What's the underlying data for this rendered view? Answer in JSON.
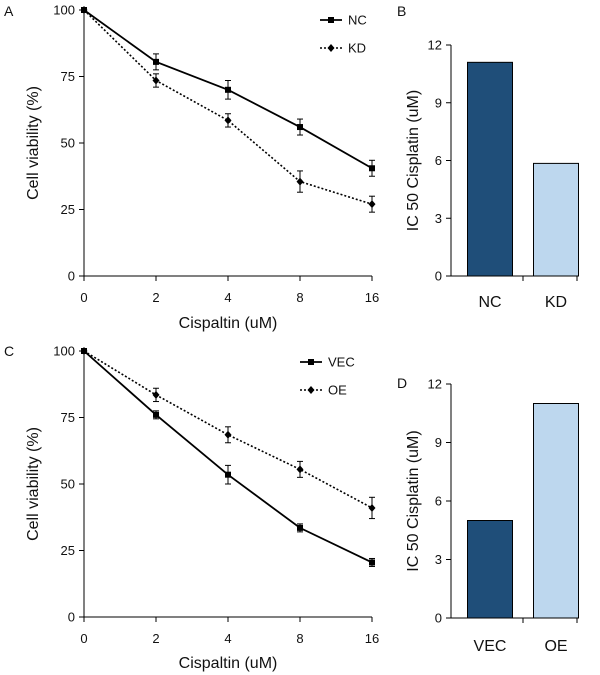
{
  "panels": [
    {
      "letter": "A",
      "chart_data": {
        "type": "line",
        "xlabel": "Cispaltin (uM)",
        "ylabel": "Cell viability (%)",
        "x": [
          "0",
          "2",
          "4",
          "8",
          "16"
        ],
        "ylim": [
          0,
          100
        ],
        "yticks": [
          "0",
          "25",
          "50",
          "75",
          "100"
        ],
        "legend_position": "top-right",
        "series": [
          {
            "name": "NC",
            "style": "solid",
            "marker": "square",
            "values": [
              100,
              80.5,
              70,
              56,
              40.5
            ],
            "errors": [
              0,
              3,
              3.5,
              3,
              3
            ]
          },
          {
            "name": "KD",
            "style": "dotted",
            "marker": "diamond",
            "values": [
              100,
              73.5,
              58.5,
              35.5,
              27
            ],
            "errors": [
              0,
              2.5,
              2.5,
              4,
              3
            ]
          }
        ]
      }
    },
    {
      "letter": "B",
      "chart_data": {
        "type": "bar",
        "ylabel": "IC 50 Cisplatin (uM)",
        "categories": [
          "NC",
          "KD"
        ],
        "values": [
          11.1,
          5.85
        ],
        "ylim": [
          0,
          12
        ],
        "yticks": [
          "0",
          "3",
          "6",
          "9",
          "12"
        ],
        "colors": [
          "#1f4e79",
          "#bdd7ee"
        ]
      }
    },
    {
      "letter": "C",
      "chart_data": {
        "type": "line",
        "xlabel": "Cispaltin (uM)",
        "ylabel": "Cell viability (%)",
        "x": [
          "0",
          "2",
          "4",
          "8",
          "16"
        ],
        "ylim": [
          0,
          100
        ],
        "yticks": [
          "0",
          "25",
          "50",
          "75",
          "100"
        ],
        "legend_position": "top-right",
        "series": [
          {
            "name": "VEC",
            "style": "solid",
            "marker": "square",
            "values": [
              100,
              76,
              53.5,
              33.5,
              20.5
            ],
            "errors": [
              0,
              1.5,
              3.5,
              1.5,
              1.5
            ]
          },
          {
            "name": "OE",
            "style": "dotted",
            "marker": "diamond",
            "values": [
              100,
              83.5,
              68.5,
              55.5,
              41
            ],
            "errors": [
              0,
              2.5,
              3,
              3,
              4
            ]
          }
        ]
      }
    },
    {
      "letter": "D",
      "chart_data": {
        "type": "bar",
        "ylabel": "IC 50 Cisplatin (uM)",
        "categories": [
          "VEC",
          "OE"
        ],
        "values": [
          5.0,
          11.0
        ],
        "ylim": [
          0,
          12
        ],
        "yticks": [
          "0",
          "3",
          "6",
          "9",
          "12"
        ],
        "colors": [
          "#1f4e79",
          "#bdd7ee"
        ]
      }
    }
  ]
}
